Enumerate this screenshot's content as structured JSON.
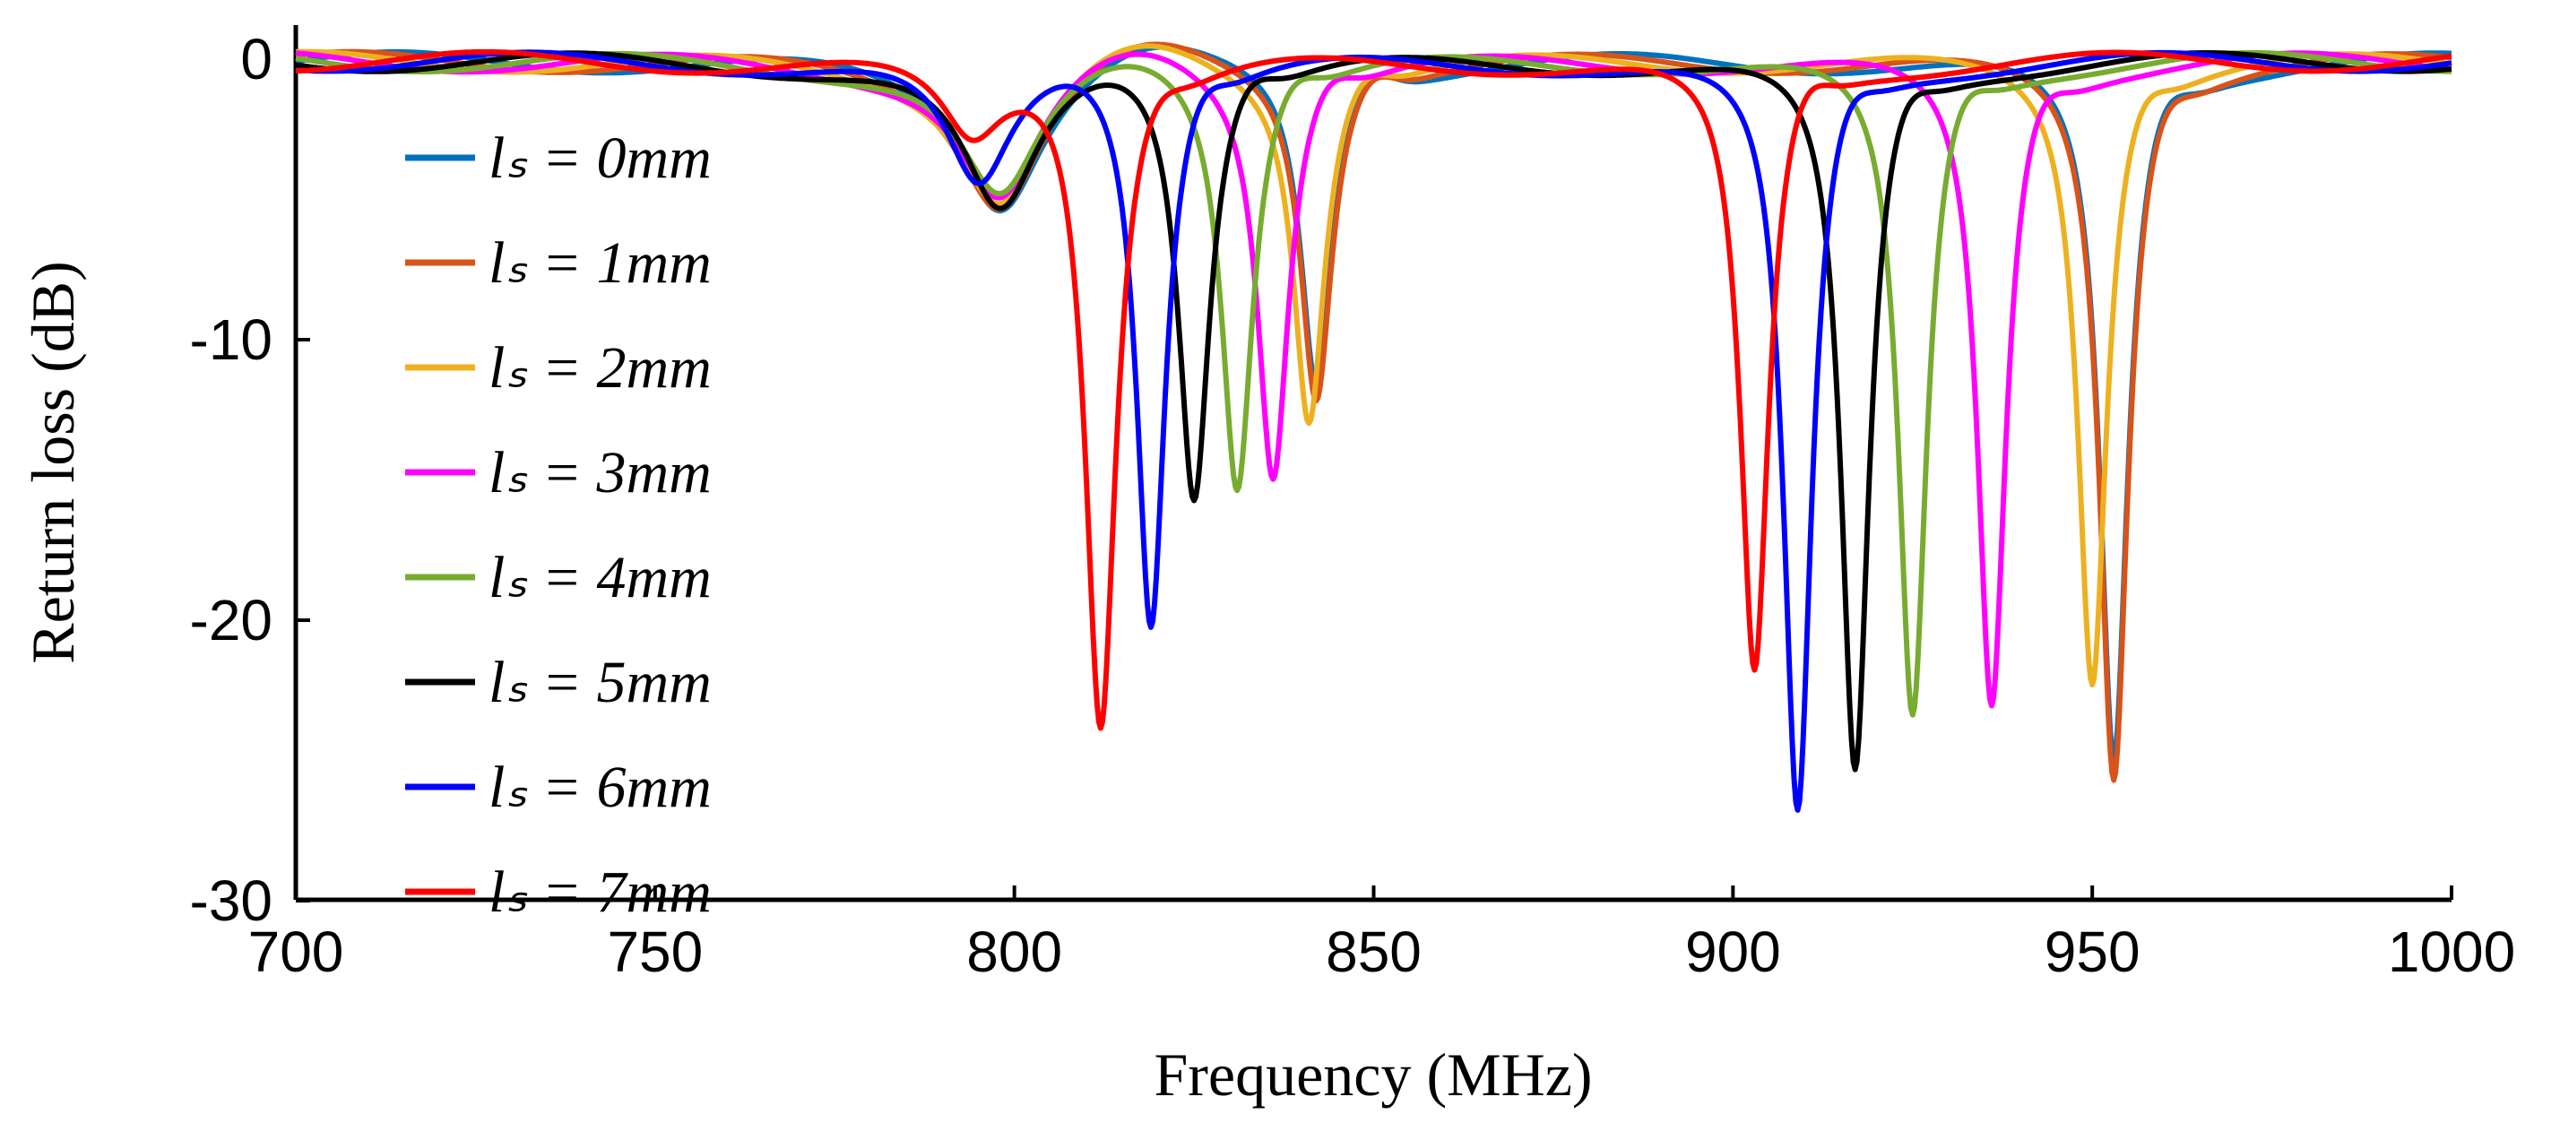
{
  "chart_data": {
    "type": "line",
    "title": "",
    "xlabel": "Frequency (MHz)",
    "ylabel": "Return loss (dB)",
    "xlim": [
      700,
      1000
    ],
    "ylim": [
      -30,
      1
    ],
    "xticks": [
      700,
      750,
      800,
      850,
      900,
      950,
      1000
    ],
    "yticks": [
      0,
      -10,
      -20,
      -30
    ],
    "xtick_labels": [
      "700",
      "750",
      "800",
      "850",
      "900",
      "950",
      "1000"
    ],
    "ytick_labels": [
      "0",
      "-10",
      "-20",
      "-30"
    ],
    "grid": false,
    "legend_position": "left",
    "series": [
      {
        "name": "l_s = 0mm",
        "legend_label": "lₛ = 0mm",
        "color": "#0072BD",
        "dips": [
          {
            "f": 798,
            "d": -5,
            "w": 7
          },
          {
            "f": 842,
            "d": -11.5,
            "w": 2.6
          },
          {
            "f": 953,
            "d": -25,
            "w": 2.4
          }
        ]
      },
      {
        "name": "l_s = 1mm",
        "legend_label": "lₛ = 1mm",
        "color": "#D95319",
        "dips": [
          {
            "f": 798,
            "d": -5,
            "w": 7
          },
          {
            "f": 842,
            "d": -11.8,
            "w": 2.6
          },
          {
            "f": 953,
            "d": -25.5,
            "w": 2.4
          }
        ]
      },
      {
        "name": "l_s = 2mm",
        "legend_label": "lₛ = 2mm",
        "color": "#EDB120",
        "dips": [
          {
            "f": 798,
            "d": -5,
            "w": 7
          },
          {
            "f": 841,
            "d": -12.5,
            "w": 2.6
          },
          {
            "f": 950,
            "d": -22,
            "w": 2.4
          }
        ]
      },
      {
        "name": "l_s = 3mm",
        "legend_label": "lₛ = 3mm",
        "color": "#FF00FF",
        "dips": [
          {
            "f": 798,
            "d": -5,
            "w": 7
          },
          {
            "f": 836,
            "d": -14.5,
            "w": 2.6
          },
          {
            "f": 936,
            "d": -23,
            "w": 2.4
          }
        ]
      },
      {
        "name": "l_s = 4mm",
        "legend_label": "lₛ = 4mm",
        "color": "#77AC30",
        "dips": [
          {
            "f": 798,
            "d": -5,
            "w": 7
          },
          {
            "f": 831,
            "d": -15,
            "w": 2.6
          },
          {
            "f": 925,
            "d": -23.5,
            "w": 2.4
          }
        ]
      },
      {
        "name": "l_s = 5mm",
        "legend_label": "lₛ = 5mm",
        "color": "#000000",
        "dips": [
          {
            "f": 798,
            "d": -5.5,
            "w": 6.5
          },
          {
            "f": 825,
            "d": -15.5,
            "w": 2.6
          },
          {
            "f": 917,
            "d": -25.5,
            "w": 2.4
          }
        ]
      },
      {
        "name": "l_s = 6mm",
        "legend_label": "lₛ = 6mm",
        "color": "#0000FF",
        "dips": [
          {
            "f": 795,
            "d": -4.5,
            "w": 5.5
          },
          {
            "f": 819,
            "d": -20,
            "w": 2.4
          },
          {
            "f": 909,
            "d": -27,
            "w": 2.4
          }
        ]
      },
      {
        "name": "l_s = 7mm",
        "legend_label": "lₛ = 7mm",
        "color": "#FF0000",
        "dips": [
          {
            "f": 794,
            "d": -2.5,
            "w": 5
          },
          {
            "f": 812,
            "d": -24,
            "w": 2.6
          },
          {
            "f": 903,
            "d": -22,
            "w": 2.4
          }
        ]
      }
    ]
  }
}
